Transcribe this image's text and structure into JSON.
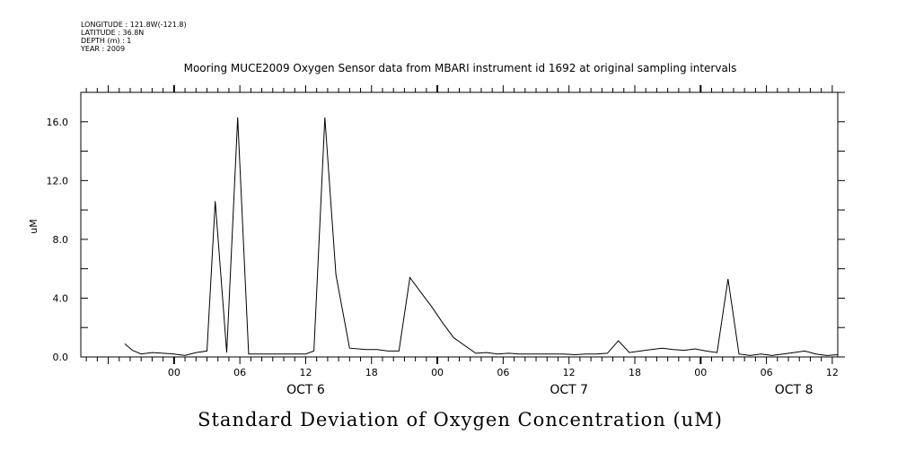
{
  "header": {
    "lines": [
      "LONGITUDE : 121.8W(-121.8)",
      "LATITUDE : 36.8N",
      "DEPTH (m) : 1",
      "YEAR : 2009"
    ]
  },
  "chart_data": {
    "type": "line",
    "title": "Mooring MUCE2009 Oxygen Sensor data from MBARI instrument id 1692 at original sampling intervals",
    "xlabel": "Standard Deviation of Oxygen Concentration (uM)",
    "ylabel": "uM",
    "x_unit": "hours from OCT 6 00:00 (2009)",
    "xlim": [
      -8.5,
      60.5
    ],
    "ylim": [
      0,
      18
    ],
    "yticks": [
      0,
      4,
      8,
      12,
      16
    ],
    "ytick_labels": [
      "0.0",
      "4.0",
      "8.0",
      "12.0",
      "16.0"
    ],
    "xticks": [
      0,
      6,
      12,
      18,
      24,
      30,
      36,
      42,
      48,
      54,
      60
    ],
    "xtick_labels": [
      "00",
      "06",
      "12",
      "18",
      "00",
      "06",
      "12",
      "18",
      "00",
      "06",
      "12"
    ],
    "day_labels": [
      {
        "x": 12,
        "label": "OCT  6"
      },
      {
        "x": 36,
        "label": "OCT  7"
      },
      {
        "x": 56.5,
        "label": "OCT  8"
      }
    ],
    "grid": false,
    "series": [
      {
        "color": "#000000",
        "x": [
          -4.5,
          -3.8,
          -3,
          -2,
          -1,
          0,
          1,
          2,
          3,
          3.75,
          4.8,
          5.8,
          6.8,
          8,
          10,
          11,
          12,
          12.75,
          13.75,
          14.75,
          16,
          17.5,
          18.5,
          19.5,
          20.5,
          21.5,
          22.5,
          23.5,
          24.5,
          25.5,
          27.5,
          28.5,
          29.5,
          30.5,
          31.5,
          32.5,
          33.5,
          34.5,
          35.5,
          36.5,
          37.5,
          38.5,
          39.5,
          40.5,
          41.5,
          42.5,
          43.5,
          44.5,
          45.5,
          46.5,
          47.5,
          48.5,
          49.5,
          50.5,
          51.5,
          52.5,
          53.5,
          54.5,
          55.5,
          56.5,
          57.5,
          58.5,
          59.5,
          60.5
        ],
        "y": [
          0.9,
          0.45,
          0.2,
          0.3,
          0.25,
          0.2,
          0.1,
          0.3,
          0.4,
          10.6,
          0.3,
          16.3,
          0.2,
          0.2,
          0.2,
          0.2,
          0.2,
          0.4,
          16.3,
          5.6,
          0.6,
          0.5,
          0.5,
          0.4,
          0.4,
          5.4,
          4.4,
          3.4,
          2.3,
          1.3,
          0.25,
          0.3,
          0.2,
          0.25,
          0.2,
          0.2,
          0.2,
          0.2,
          0.2,
          0.15,
          0.2,
          0.2,
          0.25,
          1.1,
          0.3,
          0.4,
          0.5,
          0.6,
          0.5,
          0.45,
          0.55,
          0.4,
          0.3,
          5.3,
          0.2,
          0.1,
          0.2,
          0.1,
          0.2,
          0.3,
          0.4,
          0.2,
          0.1,
          0.15
        ]
      }
    ]
  }
}
